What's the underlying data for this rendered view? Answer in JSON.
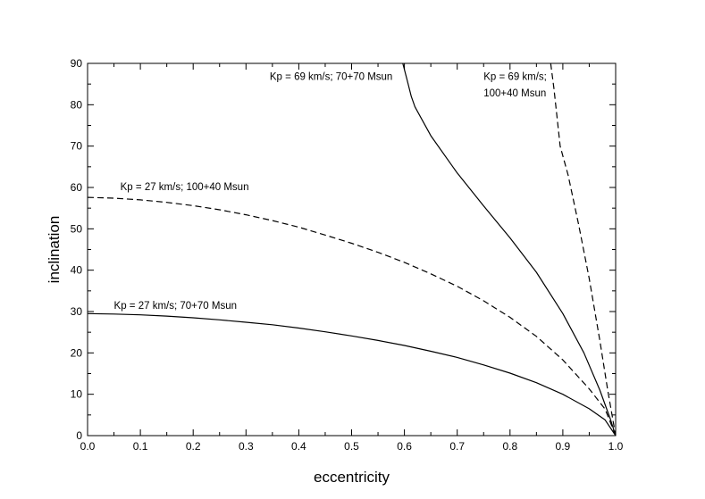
{
  "chart_data": {
    "type": "line",
    "xlabel": "eccentricity",
    "ylabel": "inclination",
    "xlim": [
      0.0,
      1.0
    ],
    "ylim": [
      0,
      90
    ],
    "x_ticks": [
      0.0,
      0.1,
      0.2,
      0.3,
      0.4,
      0.5,
      0.6,
      0.7,
      0.8,
      0.9,
      1.0
    ],
    "x_tick_labels": [
      "0.0",
      "0.1",
      "0.2",
      "0.3",
      "0.4",
      "0.5",
      "0.6",
      "0.7",
      "0.8",
      "0.9",
      "1.0"
    ],
    "y_ticks": [
      0,
      10,
      20,
      30,
      40,
      50,
      60,
      70,
      80,
      90
    ],
    "y_tick_labels": [
      "0",
      "10",
      "20",
      "30",
      "40",
      "50",
      "60",
      "70",
      "80",
      "90"
    ],
    "grid": false,
    "legend": "none",
    "series": [
      {
        "name": "Kp = 27 km/s; 70+70 Msun",
        "style": "solid",
        "color": "#000000",
        "x": [
          0.0,
          0.05,
          0.1,
          0.15,
          0.2,
          0.25,
          0.3,
          0.35,
          0.4,
          0.45,
          0.5,
          0.55,
          0.6,
          0.65,
          0.7,
          0.75,
          0.8,
          0.85,
          0.9,
          0.95,
          0.98,
          1.0
        ],
        "y": [
          29.5,
          29.4,
          29.2,
          28.9,
          28.5,
          28.0,
          27.4,
          26.8,
          26.0,
          25.1,
          24.1,
          23.0,
          21.8,
          20.4,
          18.9,
          17.1,
          15.1,
          12.8,
          10.0,
          6.5,
          3.8,
          0.0
        ]
      },
      {
        "name": "Kp = 27 km/s; 100+40 Msun",
        "style": "dashed",
        "color": "#000000",
        "x": [
          0.0,
          0.05,
          0.1,
          0.15,
          0.2,
          0.25,
          0.3,
          0.35,
          0.4,
          0.45,
          0.5,
          0.55,
          0.6,
          0.65,
          0.7,
          0.75,
          0.8,
          0.85,
          0.9,
          0.95,
          0.98,
          1.0
        ],
        "y": [
          57.6,
          57.4,
          57.0,
          56.4,
          55.6,
          54.6,
          53.4,
          52.0,
          50.4,
          48.5,
          46.5,
          44.3,
          41.9,
          39.1,
          36.1,
          32.6,
          28.6,
          24.0,
          18.3,
          11.3,
          6.4,
          0.0
        ]
      },
      {
        "name": "Kp = 69 km/s; 70+70 Msun",
        "style": "solid",
        "color": "#000000",
        "x": [
          0.597,
          0.605,
          0.613,
          0.62,
          0.65,
          0.7,
          0.75,
          0.8,
          0.85,
          0.9,
          0.94,
          0.97,
          0.99,
          1.0
        ],
        "y": [
          90.0,
          86.0,
          82.0,
          79.5,
          72.5,
          63.5,
          55.5,
          47.8,
          39.5,
          29.5,
          20.0,
          11.0,
          4.0,
          0.0
        ]
      },
      {
        "name": "Kp = 69 km/s; 100+40 Msun",
        "style": "dashed",
        "color": "#000000",
        "x": [
          0.877,
          0.883,
          0.889,
          0.895,
          0.91,
          0.93,
          0.95,
          0.97,
          0.985,
          1.0
        ],
        "y": [
          90.0,
          84.0,
          77.0,
          70.0,
          63.0,
          51.0,
          38.0,
          23.0,
          11.0,
          0.0
        ]
      }
    ],
    "annotations": [
      {
        "text": "Kp = 69 km/s; 70+70 Msun",
        "x": 0.345,
        "y": 86.0
      },
      {
        "text": "Kp = 69 km/s;",
        "x": 0.75,
        "y": 86.0
      },
      {
        "text": "100+40 Msun",
        "x": 0.75,
        "y": 82.0
      },
      {
        "text": "Kp = 27 km/s; 100+40 Msun",
        "x": 0.062,
        "y": 59.3
      },
      {
        "text": "Kp = 27 km/s; 70+70 Msun",
        "x": 0.05,
        "y": 30.6
      }
    ]
  }
}
